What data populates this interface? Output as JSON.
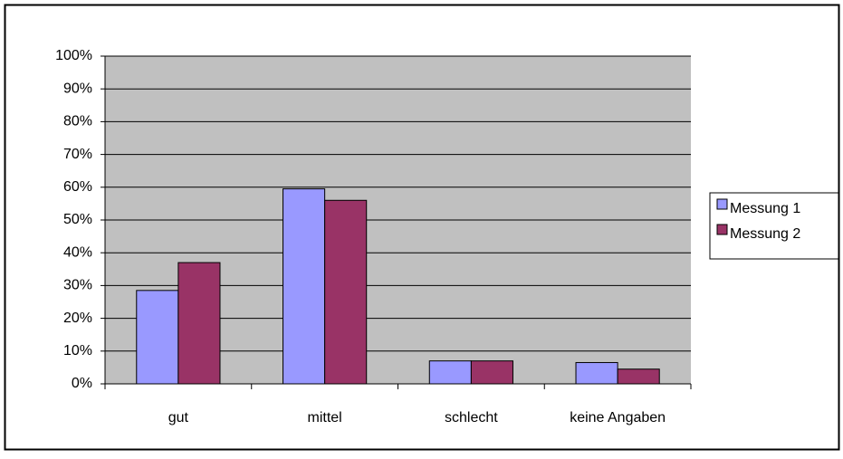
{
  "chart_data": {
    "type": "bar",
    "categories": [
      "gut",
      "mittel",
      "schlecht",
      "keine Angaben"
    ],
    "series": [
      {
        "name": "Messung 1",
        "color": "#9999ff",
        "values": [
          28.5,
          59.5,
          7,
          6.5
        ]
      },
      {
        "name": "Messung 2",
        "color": "#993366",
        "values": [
          37,
          56,
          7,
          4.5
        ]
      }
    ],
    "ylim": [
      0,
      100
    ],
    "yticks": [
      {
        "value": 0,
        "label": "0%"
      },
      {
        "value": 10,
        "label": "10%"
      },
      {
        "value": 20,
        "label": "20%"
      },
      {
        "value": 30,
        "label": "30%"
      },
      {
        "value": 40,
        "label": "40%"
      },
      {
        "value": 50,
        "label": "50%"
      },
      {
        "value": 60,
        "label": "60%"
      },
      {
        "value": 70,
        "label": "70%"
      },
      {
        "value": 80,
        "label": "80%"
      },
      {
        "value": 90,
        "label": "90%"
      },
      {
        "value": 100,
        "label": "100%"
      }
    ],
    "grid": true,
    "plot_background": "#c0c0c0",
    "legend": "right"
  }
}
